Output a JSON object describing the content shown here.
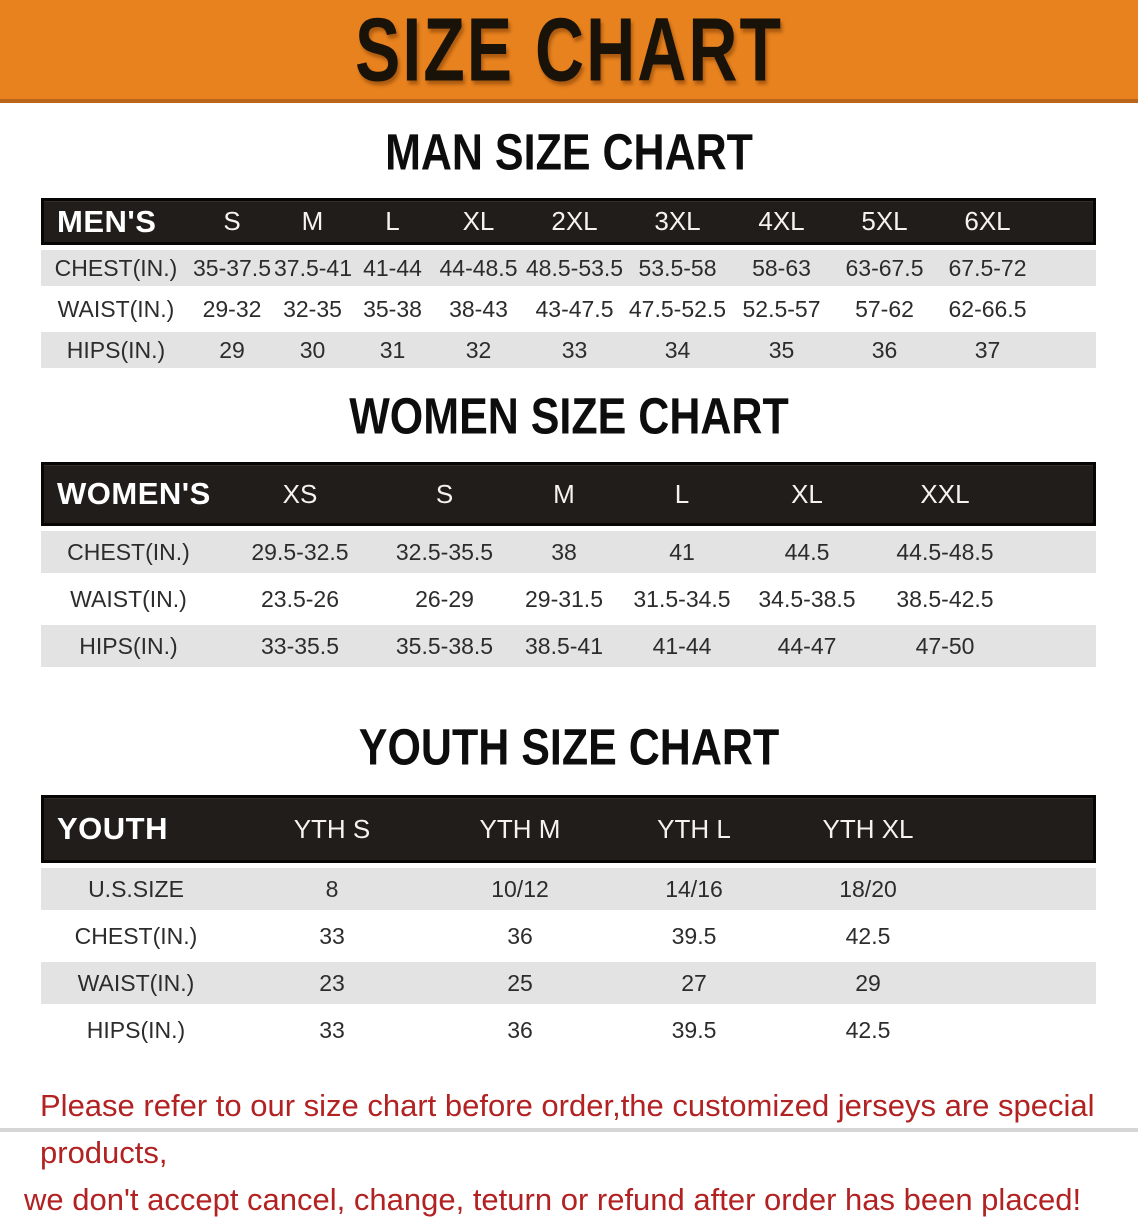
{
  "banner": {
    "title": "SIZE CHART",
    "bg_color": "#E8821E",
    "text_color": "#181209"
  },
  "sections": [
    {
      "id": "men",
      "title": "MAN SIZE CHART",
      "header_label": "MEN'S",
      "columns": [
        "S",
        "M",
        "L",
        "XL",
        "2XL",
        "3XL",
        "4XL",
        "5XL",
        "6XL"
      ],
      "rows": [
        {
          "label": "CHEST(IN.)",
          "values": [
            "35-37.5",
            "37.5-41",
            "41-44",
            "44-48.5",
            "48.5-53.5",
            "53.5-58",
            "58-63",
            "63-67.5",
            "67.5-72"
          ]
        },
        {
          "label": "WAIST(IN.)",
          "values": [
            "29-32",
            "32-35",
            "35-38",
            "38-43",
            "43-47.5",
            "47.5-52.5",
            "52.5-57",
            "57-62",
            "62-66.5"
          ]
        },
        {
          "label": "HIPS(IN.)",
          "values": [
            "29",
            "30",
            "31",
            "32",
            "33",
            "34",
            "35",
            "36",
            "37"
          ]
        }
      ]
    },
    {
      "id": "women",
      "title": "WOMEN SIZE CHART",
      "header_label": "WOMEN'S",
      "columns": [
        "XS",
        "S",
        "M",
        "L",
        "XL",
        "XXL"
      ],
      "rows": [
        {
          "label": "CHEST(IN.)",
          "values": [
            "29.5-32.5",
            "32.5-35.5",
            "38",
            "41",
            "44.5",
            "44.5-48.5"
          ]
        },
        {
          "label": "WAIST(IN.)",
          "values": [
            "23.5-26",
            "26-29",
            "29-31.5",
            "31.5-34.5",
            "34.5-38.5",
            "38.5-42.5"
          ]
        },
        {
          "label": "HIPS(IN.)",
          "values": [
            "33-35.5",
            "35.5-38.5",
            "38.5-41",
            "41-44",
            "44-47",
            "47-50"
          ]
        }
      ]
    },
    {
      "id": "youth",
      "title": "YOUTH SIZE CHART",
      "header_label": "YOUTH",
      "columns": [
        "YTH S",
        "YTH M",
        "YTH L",
        "YTH XL"
      ],
      "rows": [
        {
          "label": "U.S.SIZE",
          "values": [
            "8",
            "10/12",
            "14/16",
            "18/20"
          ]
        },
        {
          "label": "CHEST(IN.)",
          "values": [
            "33",
            "36",
            "39.5",
            "42.5"
          ]
        },
        {
          "label": "WAIST(IN.)",
          "values": [
            "23",
            "25",
            "27",
            "29"
          ]
        },
        {
          "label": "HIPS(IN.)",
          "values": [
            "33",
            "36",
            "39.5",
            "42.5"
          ]
        }
      ]
    }
  ],
  "footer": {
    "lines": [
      "Please refer to our size chart before order,the customized jerseys are special products,",
      "we don't accept cancel, change, teturn or refund after order has been placed!"
    ],
    "text_color": "#B22222"
  },
  "colors": {
    "banner_orange": "#E8821E",
    "banner_border": "#B9661A",
    "table_header_black": "#201D1B",
    "row_stripe_gray": "#E3E3E3",
    "notice_red": "#B22222"
  }
}
